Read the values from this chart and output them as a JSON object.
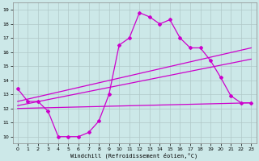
{
  "xlabel": "Windchill (Refroidissement éolien,°C)",
  "xlim": [
    -0.5,
    23.5
  ],
  "ylim": [
    9.5,
    19.5
  ],
  "yticks": [
    10,
    11,
    12,
    13,
    14,
    15,
    16,
    17,
    18,
    19
  ],
  "xticks": [
    0,
    1,
    2,
    3,
    4,
    5,
    6,
    7,
    8,
    9,
    10,
    11,
    12,
    13,
    14,
    15,
    16,
    17,
    18,
    19,
    20,
    21,
    22,
    23
  ],
  "background_color": "#cce8e8",
  "line_color": "#cc00cc",
  "grid_color": "#b0c8c8",
  "curve1_x": [
    0,
    1,
    2,
    3,
    4,
    5,
    6,
    7,
    8,
    9,
    10,
    11,
    12,
    13,
    14,
    15,
    16,
    17,
    18,
    19,
    20,
    21,
    22,
    23
  ],
  "curve1_y": [
    13.4,
    12.5,
    12.5,
    11.8,
    10.0,
    10.0,
    10.0,
    10.3,
    11.1,
    13.0,
    16.5,
    17.0,
    18.8,
    18.5,
    18.0,
    18.3,
    17.0,
    16.3,
    16.3,
    15.4,
    14.2,
    12.9,
    12.4,
    12.4
  ],
  "line2_x": [
    0,
    23
  ],
  "line2_y": [
    12.5,
    16.3
  ],
  "line3_x": [
    0,
    23
  ],
  "line3_y": [
    12.2,
    15.5
  ],
  "line4_x": [
    0,
    23
  ],
  "line4_y": [
    12.0,
    12.4
  ]
}
